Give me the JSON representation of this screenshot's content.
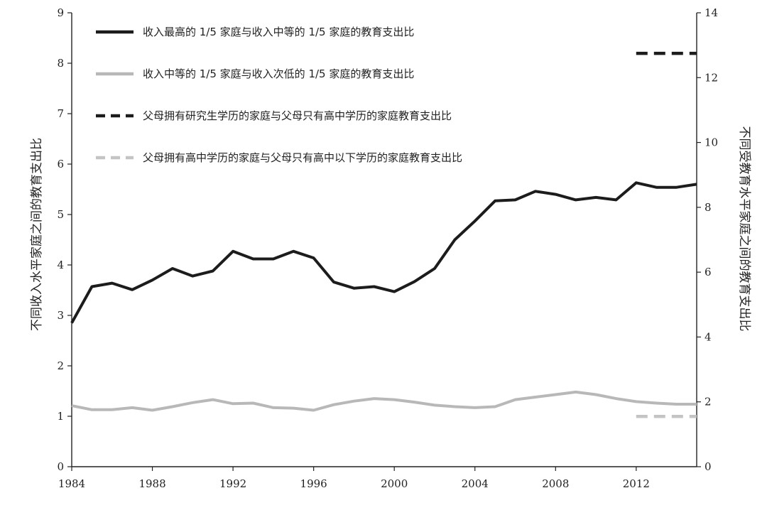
{
  "chart_data": {
    "type": "line",
    "title": "",
    "xlabel": "",
    "ylabel_left": "不同收入水平家庭之间的教育支出比",
    "ylabel_right": "不同受教育水平家庭之间的教育支出比",
    "xlim": [
      1984,
      2015
    ],
    "ylim_left": [
      0,
      9
    ],
    "ylim_right": [
      0,
      14
    ],
    "x_ticks": [
      1984,
      1988,
      1992,
      1996,
      2000,
      2004,
      2008,
      2012
    ],
    "y_ticks_left": [
      0,
      1,
      2,
      3,
      4,
      5,
      6,
      7,
      8,
      9
    ],
    "y_ticks_right": [
      0,
      2,
      4,
      6,
      8,
      10,
      12,
      14
    ],
    "grid": false,
    "legend_position": "top-left",
    "series": [
      {
        "name": "收入最高的 1/5 家庭与收入中等的 1/5 家庭的教育支出比",
        "axis": "left",
        "color": "#1c1c1c",
        "dash": "solid",
        "x": [
          1984,
          1985,
          1986,
          1987,
          1988,
          1989,
          1990,
          1991,
          1992,
          1993,
          1994,
          1995,
          1996,
          1997,
          1998,
          1999,
          2000,
          2001,
          2002,
          2003,
          2004,
          2005,
          2006,
          2007,
          2008,
          2009,
          2010,
          2011,
          2012,
          2013,
          2014,
          2015
        ],
        "values": [
          2.85,
          3.57,
          3.64,
          3.51,
          3.7,
          3.93,
          3.78,
          3.88,
          4.27,
          4.12,
          4.12,
          4.27,
          4.14,
          3.66,
          3.54,
          3.57,
          3.47,
          3.67,
          3.93,
          4.5,
          4.87,
          5.27,
          5.29,
          5.46,
          5.4,
          5.29,
          5.34,
          5.29,
          5.63,
          5.54,
          5.54,
          5.6
        ]
      },
      {
        "name": "收入中等的 1/5 家庭与收入次低的 1/5 家庭的教育支出比",
        "axis": "left",
        "color": "#b8b8b8",
        "dash": "solid",
        "x": [
          1984,
          1985,
          1986,
          1987,
          1988,
          1989,
          1990,
          1991,
          1992,
          1993,
          1994,
          1995,
          1996,
          1997,
          1998,
          1999,
          2000,
          2001,
          2002,
          2003,
          2004,
          2005,
          2006,
          2007,
          2008,
          2009,
          2010,
          2011,
          2012,
          2013,
          2014,
          2015
        ],
        "values": [
          1.21,
          1.13,
          1.13,
          1.17,
          1.12,
          1.19,
          1.27,
          1.33,
          1.25,
          1.26,
          1.17,
          1.16,
          1.12,
          1.23,
          1.3,
          1.35,
          1.33,
          1.28,
          1.22,
          1.19,
          1.17,
          1.19,
          1.33,
          1.38,
          1.43,
          1.48,
          1.43,
          1.35,
          1.29,
          1.26,
          1.24,
          1.24
        ]
      },
      {
        "name": "父母拥有研究生学历的家庭与父母只有高中学历的家庭教育支出比",
        "axis": "right",
        "color": "#1c1c1c",
        "dash": "dashed",
        "x": [
          2012,
          2015
        ],
        "values": [
          12.75,
          12.75
        ]
      },
      {
        "name": "父母拥有高中学历的家庭与父母只有高中以下学历的家庭教育支出比",
        "axis": "right",
        "color": "#c4c4c4",
        "dash": "dashed",
        "x": [
          2012,
          2015
        ],
        "values": [
          1.55,
          1.55
        ]
      }
    ]
  }
}
